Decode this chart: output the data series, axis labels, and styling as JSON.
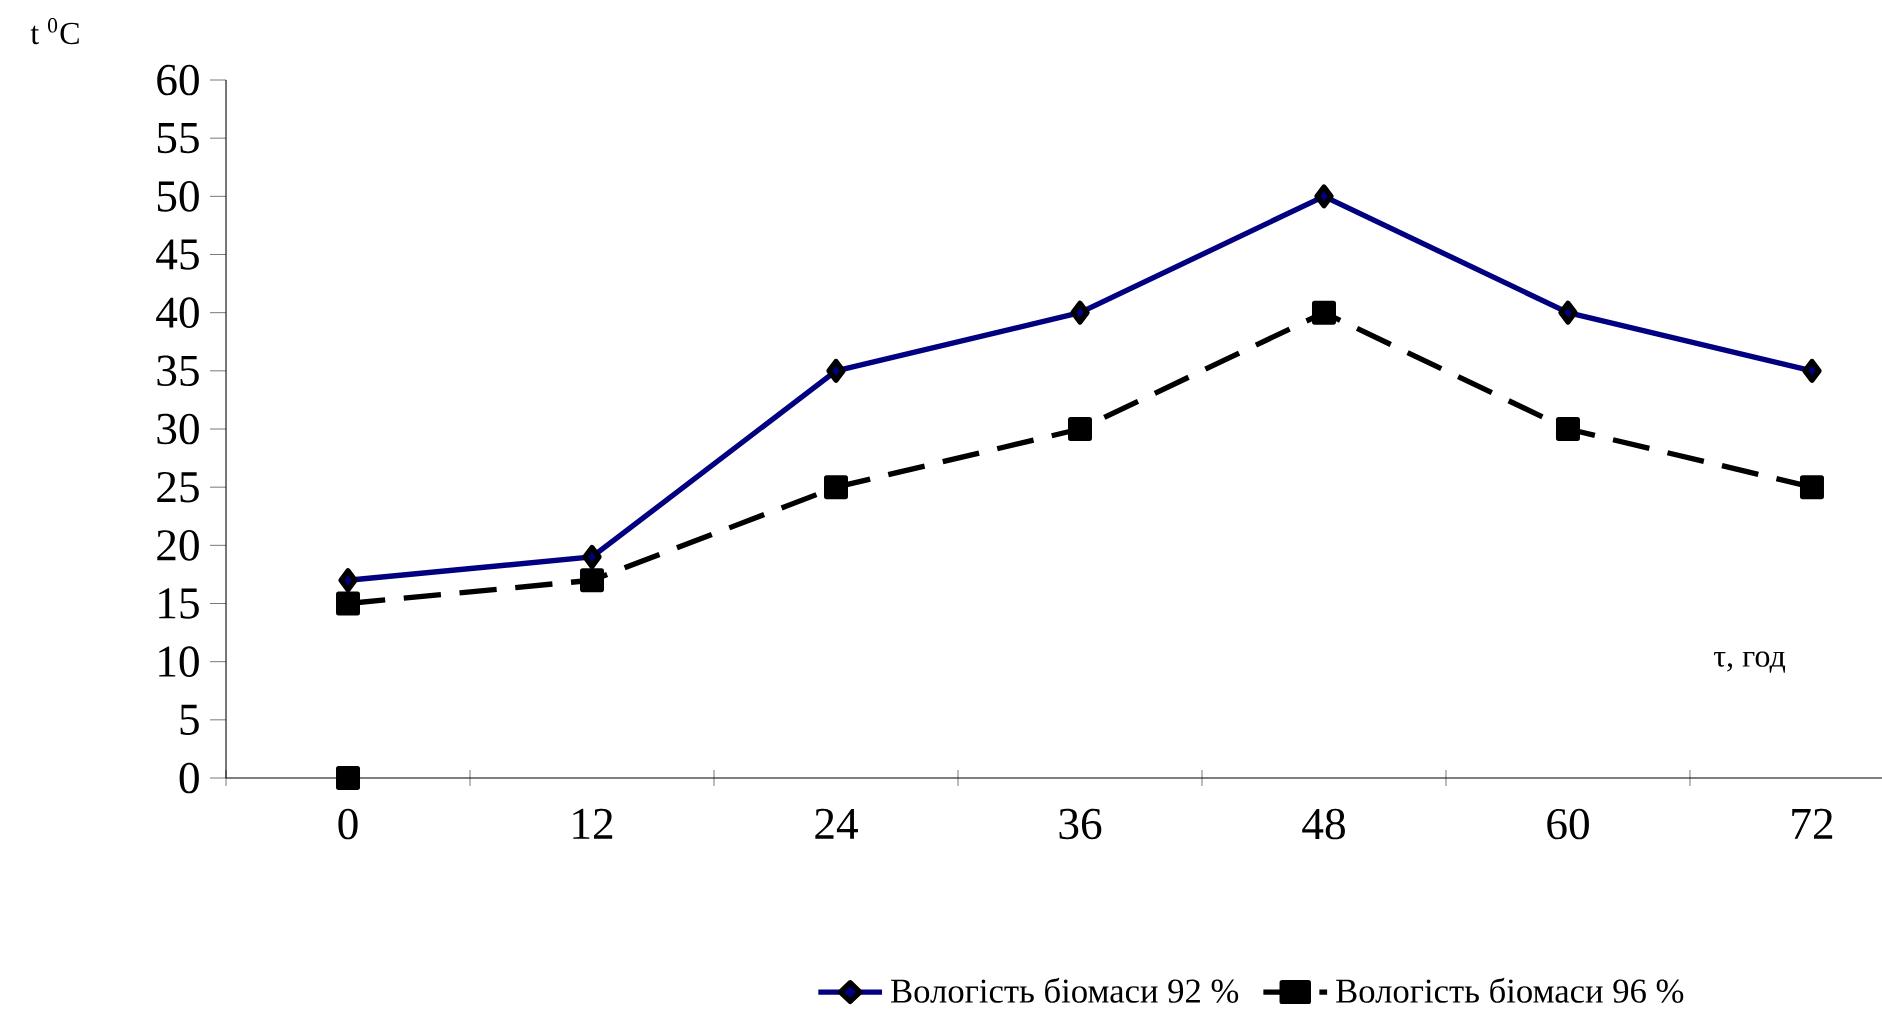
{
  "chart_data": {
    "type": "line",
    "xlabel": "τ, год",
    "ylabel": "t $^{0}$C",
    "categories": [
      "0",
      "12",
      "24",
      "36",
      "48",
      "60",
      "72",
      null
    ],
    "ylim": [
      0,
      60
    ],
    "yticks": [
      0,
      5,
      10,
      15,
      20,
      25,
      30,
      35,
      40,
      45,
      50,
      55,
      60
    ],
    "legend": "bottom",
    "grid": false,
    "series": [
      {
        "name": "Вологість біомаси 92 %",
        "color": "#000080",
        "marker": "diamond",
        "line_style": "solid",
        "values": [
          17,
          19,
          35,
          40,
          50,
          40,
          35,
          null
        ]
      },
      {
        "name": "Вологість біомаси 96 %",
        "color": "#000000",
        "marker": "square",
        "line_style": "dashed",
        "values": [
          15,
          17,
          25,
          30,
          40,
          30,
          25,
          null
        ]
      },
      {
        "type": "scatter",
        "color": "#000000",
        "marker": "square",
        "values": [
          0,
          null,
          null,
          null,
          null,
          null,
          null,
          null
        ]
      }
    ]
  }
}
